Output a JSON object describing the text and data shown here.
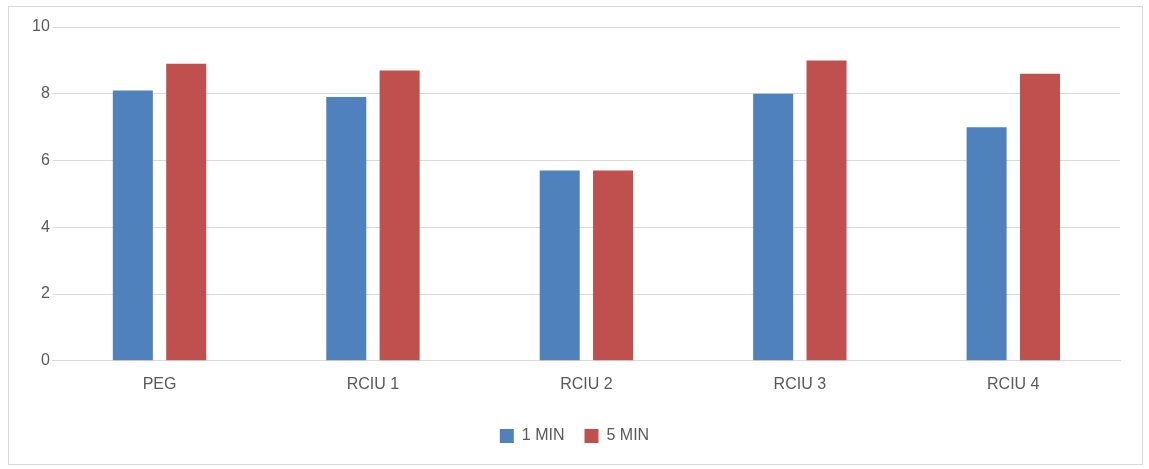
{
  "chart_data": {
    "type": "bar",
    "categories": [
      "PEG",
      "RCIU 1",
      "RCIU 2",
      "RCIU 3",
      "RCIU 4"
    ],
    "series": [
      {
        "name": "1 MIN",
        "color": "#4f81bd",
        "values": [
          8.1,
          7.9,
          5.7,
          8,
          7
        ]
      },
      {
        "name": "5 MIN",
        "color": "#c0504d",
        "values": [
          8.9,
          8.7,
          5.7,
          9,
          8.6
        ]
      }
    ],
    "ylim": [
      0,
      10
    ],
    "yticks": [
      0,
      2,
      4,
      6,
      8,
      10
    ],
    "grid": "y",
    "legend": "bottom"
  }
}
